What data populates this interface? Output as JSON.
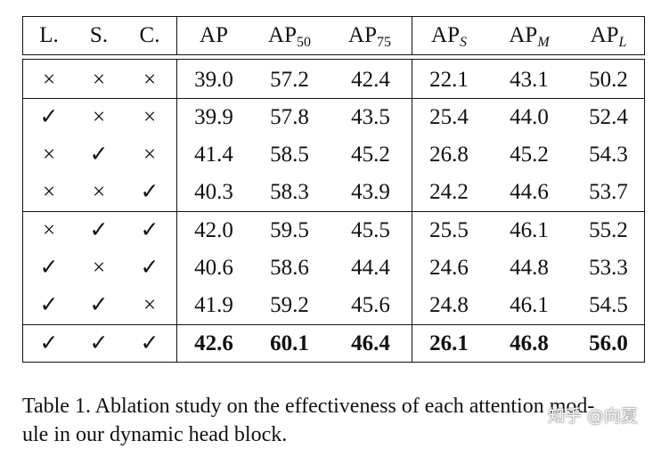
{
  "table": {
    "headers": {
      "l": "L.",
      "s": "S.",
      "c": "C.",
      "ap": "AP",
      "ap50_base": "AP",
      "ap50_sub": "50",
      "ap75_base": "AP",
      "ap75_sub": "75",
      "aps_base": "AP",
      "aps_sub": "S",
      "apm_base": "AP",
      "apm_sub": "M",
      "apl_base": "AP",
      "apl_sub": "L"
    },
    "rows": [
      [
        "×",
        "×",
        "×",
        "39.0",
        "57.2",
        "42.4",
        "22.1",
        "43.1",
        "50.2"
      ],
      [
        "✓",
        "×",
        "×",
        "39.9",
        "57.8",
        "43.5",
        "25.4",
        "44.0",
        "52.4"
      ],
      [
        "×",
        "✓",
        "×",
        "41.4",
        "58.5",
        "45.2",
        "26.8",
        "45.2",
        "54.3"
      ],
      [
        "×",
        "×",
        "✓",
        "40.3",
        "58.3",
        "43.9",
        "24.2",
        "44.6",
        "53.7"
      ],
      [
        "×",
        "✓",
        "✓",
        "42.0",
        "59.5",
        "45.5",
        "25.5",
        "46.1",
        "55.2"
      ],
      [
        "✓",
        "×",
        "✓",
        "40.6",
        "58.6",
        "44.4",
        "24.6",
        "44.8",
        "53.3"
      ],
      [
        "✓",
        "✓",
        "×",
        "41.9",
        "59.2",
        "45.6",
        "24.8",
        "46.1",
        "54.5"
      ],
      [
        "✓",
        "✓",
        "✓",
        "42.6",
        "60.1",
        "46.4",
        "26.1",
        "46.8",
        "56.0"
      ]
    ]
  },
  "caption": "Table 1. Ablation study on the effectiveness of each attention module in our dynamic head block.",
  "caption_line1": "Table 1. Ablation study on the effectiveness of each attention mod-",
  "caption_line2": "ule in our dynamic head block.",
  "watermark": "知乎 @向夏"
}
